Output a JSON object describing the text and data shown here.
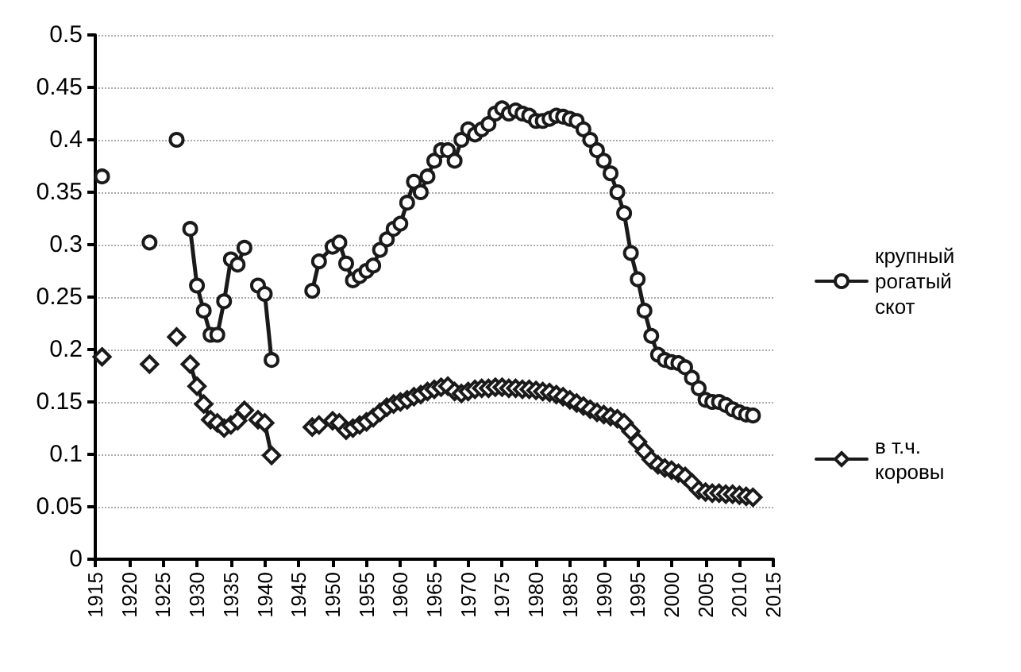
{
  "chart_data": {
    "type": "line",
    "x": [
      1916,
      1917,
      1923,
      1924,
      1927,
      1928,
      1929,
      1930,
      1931,
      1932,
      1933,
      1934,
      1935,
      1936,
      1937,
      1938,
      1939,
      1940,
      1941,
      1942,
      1947,
      1948,
      1950,
      1951,
      1952,
      1953,
      1954,
      1955,
      1956,
      1957,
      1958,
      1959,
      1960,
      1961,
      1962,
      1963,
      1964,
      1965,
      1966,
      1967,
      1968,
      1969,
      1970,
      1971,
      1972,
      1973,
      1974,
      1975,
      1976,
      1977,
      1978,
      1979,
      1980,
      1981,
      1982,
      1983,
      1984,
      1985,
      1986,
      1987,
      1988,
      1989,
      1990,
      1991,
      1992,
      1993,
      1994,
      1995,
      1996,
      1997,
      1998,
      1999,
      2000,
      2001,
      2002,
      2003,
      2004,
      2005,
      2006,
      2007,
      2008,
      2009,
      2010,
      2011,
      2012
    ],
    "series": [
      {
        "name": "крупный рогатый скот",
        "color": "#1a1a1a",
        "marker": "circle",
        "values": [
          0.365,
          null,
          0.302,
          null,
          0.4,
          null,
          0.315,
          0.261,
          0.237,
          0.214,
          0.214,
          0.246,
          0.286,
          0.281,
          0.297,
          null,
          0.261,
          0.253,
          0.19,
          null,
          0.256,
          0.284,
          0.298,
          0.302,
          0.282,
          0.266,
          0.27,
          0.275,
          0.28,
          0.295,
          0.305,
          0.315,
          0.32,
          0.34,
          0.36,
          0.35,
          0.365,
          0.38,
          0.39,
          0.39,
          0.38,
          0.4,
          0.41,
          0.405,
          0.41,
          0.415,
          0.425,
          0.43,
          0.425,
          0.428,
          0.425,
          0.423,
          0.418,
          0.418,
          0.42,
          0.423,
          0.422,
          0.42,
          0.418,
          0.41,
          0.4,
          0.39,
          0.38,
          0.368,
          0.35,
          0.33,
          0.292,
          0.267,
          0.237,
          0.213,
          0.195,
          0.19,
          0.188,
          0.187,
          0.183,
          0.173,
          0.163,
          0.152,
          0.15,
          0.15,
          0.147,
          0.143,
          0.14,
          0.138,
          0.137
        ]
      },
      {
        "name": "в т.ч. коровы",
        "color": "#1a1a1a",
        "marker": "diamond",
        "values": [
          0.193,
          null,
          0.186,
          null,
          0.212,
          null,
          0.186,
          0.165,
          0.148,
          0.133,
          0.13,
          0.125,
          0.128,
          0.132,
          0.142,
          null,
          0.133,
          0.13,
          0.099,
          null,
          0.126,
          0.128,
          0.132,
          0.13,
          0.123,
          0.125,
          0.128,
          0.131,
          0.135,
          0.14,
          0.145,
          0.148,
          0.15,
          0.152,
          0.155,
          0.157,
          0.16,
          0.162,
          0.164,
          0.165,
          0.16,
          0.158,
          0.16,
          0.162,
          0.163,
          0.163,
          0.164,
          0.164,
          0.163,
          0.163,
          0.162,
          0.162,
          0.161,
          0.16,
          0.159,
          0.157,
          0.155,
          0.152,
          0.149,
          0.146,
          0.143,
          0.14,
          0.138,
          0.136,
          0.134,
          0.13,
          0.122,
          0.112,
          0.103,
          0.095,
          0.09,
          0.087,
          0.085,
          0.082,
          0.079,
          0.073,
          0.066,
          0.064,
          0.063,
          0.063,
          0.062,
          0.062,
          0.061,
          0.06,
          0.059
        ]
      }
    ],
    "xlim": [
      1915,
      2015
    ],
    "xticks": [
      1915,
      1920,
      1925,
      1930,
      1935,
      1940,
      1945,
      1950,
      1955,
      1960,
      1965,
      1970,
      1975,
      1980,
      1985,
      1990,
      1995,
      2000,
      2005,
      2010,
      2015
    ],
    "ylim": [
      0,
      0.5
    ],
    "yticks": [
      0,
      0.05,
      0.1,
      0.15,
      0.2,
      0.25,
      0.3,
      0.35,
      0.4,
      0.45,
      0.5
    ],
    "grid": "y",
    "legend": "right",
    "line_style": "solid"
  }
}
